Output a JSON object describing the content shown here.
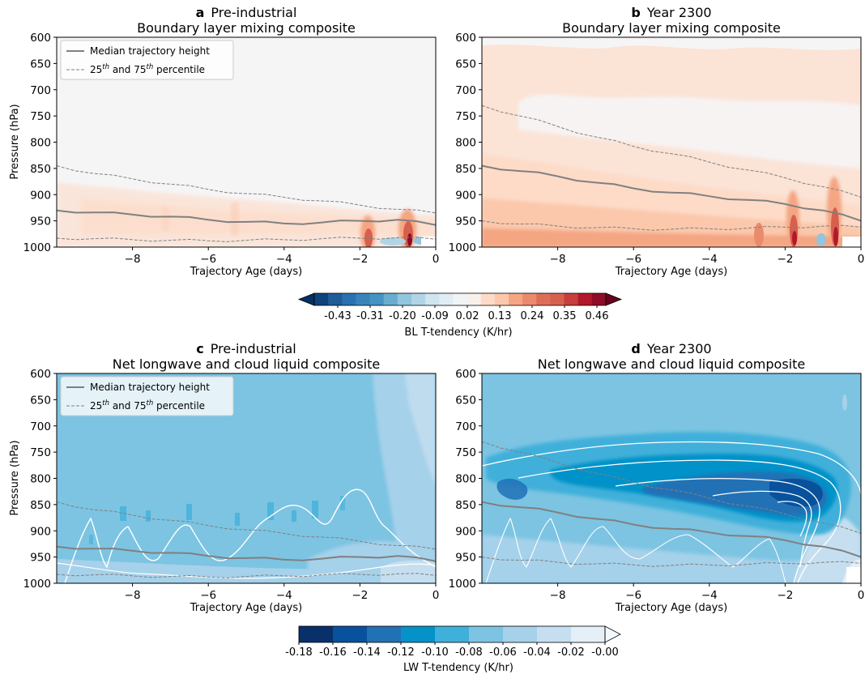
{
  "chart_data": [
    {
      "type": "heatmap",
      "panel_letter": "a",
      "title": "Pre-industrial",
      "subtitle": "Boundary layer mixing composite",
      "xlabel": "Trajectory Age (days)",
      "ylabel": "Pressure (hPa)",
      "xlim": [
        -10,
        0
      ],
      "ylim": [
        600,
        1000
      ],
      "y_inverted": true,
      "xticks": [
        -8,
        -6,
        -4,
        -2,
        0
      ],
      "yticks": [
        600,
        650,
        700,
        750,
        800,
        850,
        900,
        950,
        1000
      ],
      "legend": {
        "position": "top-left",
        "entries": [
          {
            "label": "Median trajectory height",
            "style": "solid"
          },
          {
            "label_base": "25",
            "sup1": "th",
            "label_mid": " and 75",
            "sup2": "th",
            "label_end": " percentile",
            "style": "dashed"
          }
        ]
      },
      "series": [
        {
          "role": "median",
          "x": [
            -10,
            -9,
            -8,
            -7,
            -6,
            -5,
            -4,
            -3,
            -2,
            -1,
            0
          ],
          "y": [
            930,
            934,
            938,
            942,
            948,
            952,
            955,
            953,
            950,
            948,
            958
          ]
        },
        {
          "role": "p25",
          "x": [
            -10,
            -9,
            -8,
            -7,
            -6,
            -5,
            -4,
            -3,
            -2,
            -1,
            0
          ],
          "y": [
            845,
            860,
            870,
            880,
            890,
            898,
            905,
            912,
            920,
            928,
            935
          ]
        },
        {
          "role": "p75",
          "x": [
            -10,
            -9,
            -8,
            -7,
            -6,
            -5,
            -4,
            -3,
            -2,
            -1,
            0
          ],
          "y": [
            983,
            984,
            986,
            987,
            988,
            987,
            986,
            984,
            983,
            982,
            985
          ]
        }
      ],
      "color_field": "bl_warm_low"
    },
    {
      "type": "heatmap",
      "panel_letter": "b",
      "title": "Year 2300",
      "subtitle": "Boundary layer mixing composite",
      "xlabel": "Trajectory Age (days)",
      "ylabel": "",
      "xlim": [
        -10,
        0
      ],
      "ylim": [
        600,
        1000
      ],
      "y_inverted": true,
      "xticks": [
        -8,
        -6,
        -4,
        -2,
        0
      ],
      "yticks": [
        600,
        650,
        700,
        750,
        800,
        850,
        900,
        950,
        1000
      ],
      "series": [
        {
          "role": "median",
          "x": [
            -10,
            -9,
            -8,
            -7,
            -6,
            -5,
            -4,
            -3,
            -2,
            -1,
            0
          ],
          "y": [
            845,
            855,
            865,
            877,
            888,
            896,
            903,
            910,
            918,
            930,
            950
          ]
        },
        {
          "role": "p25",
          "x": [
            -10,
            -9,
            -8,
            -7,
            -6,
            -5,
            -4,
            -3,
            -2,
            -1,
            0
          ],
          "y": [
            730,
            750,
            770,
            790,
            808,
            822,
            838,
            853,
            868,
            885,
            905
          ]
        },
        {
          "role": "p75",
          "x": [
            -10,
            -9,
            -8,
            -7,
            -6,
            -5,
            -4,
            -3,
            -2,
            -1,
            0
          ],
          "y": [
            950,
            956,
            960,
            963,
            965,
            966,
            965,
            964,
            962,
            960,
            962
          ]
        }
      ],
      "color_field": "bl_warm_deep"
    },
    {
      "type": "heatmap",
      "panel_letter": "c",
      "title": "Pre-industrial",
      "subtitle": "Net longwave and cloud liquid composite",
      "xlabel": "Trajectory Age (days)",
      "ylabel": "Pressure (hPa)",
      "xlim": [
        -10,
        0
      ],
      "ylim": [
        600,
        1000
      ],
      "y_inverted": true,
      "xticks": [
        -8,
        -6,
        -4,
        -2,
        0
      ],
      "yticks": [
        600,
        650,
        700,
        750,
        800,
        850,
        900,
        950,
        1000
      ],
      "legend": {
        "position": "top-left",
        "entries": [
          {
            "label": "Median trajectory height",
            "style": "solid"
          },
          {
            "label_base": "25",
            "sup1": "th",
            "label_mid": " and 75",
            "sup2": "th",
            "label_end": " percentile",
            "style": "dashed"
          }
        ]
      },
      "series": [
        {
          "role": "median",
          "x": [
            -10,
            -9,
            -8,
            -7,
            -6,
            -5,
            -4,
            -3,
            -2,
            -1,
            0
          ],
          "y": [
            930,
            934,
            938,
            942,
            948,
            952,
            955,
            953,
            950,
            948,
            958
          ]
        },
        {
          "role": "p25",
          "x": [
            -10,
            -9,
            -8,
            -7,
            -6,
            -5,
            -4,
            -3,
            -2,
            -1,
            0
          ],
          "y": [
            845,
            860,
            870,
            880,
            890,
            898,
            905,
            912,
            920,
            928,
            935
          ]
        },
        {
          "role": "p75",
          "x": [
            -10,
            -9,
            -8,
            -7,
            -6,
            -5,
            -4,
            -3,
            -2,
            -1,
            0
          ],
          "y": [
            983,
            984,
            986,
            987,
            988,
            987,
            986,
            984,
            983,
            982,
            985
          ]
        }
      ],
      "color_field": "lw_weak"
    },
    {
      "type": "heatmap",
      "panel_letter": "d",
      "title": "Year 2300",
      "subtitle": "Net longwave and cloud liquid composite",
      "xlabel": "Trajectory Age (days)",
      "ylabel": "",
      "xlim": [
        -10,
        0
      ],
      "ylim": [
        600,
        1000
      ],
      "y_inverted": true,
      "xticks": [
        -8,
        -6,
        -4,
        -2,
        0
      ],
      "yticks": [
        600,
        650,
        700,
        750,
        800,
        850,
        900,
        950,
        1000
      ],
      "series": [
        {
          "role": "median",
          "x": [
            -10,
            -9,
            -8,
            -7,
            -6,
            -5,
            -4,
            -3,
            -2,
            -1,
            0
          ],
          "y": [
            845,
            855,
            865,
            877,
            888,
            896,
            903,
            910,
            918,
            930,
            950
          ]
        },
        {
          "role": "p25",
          "x": [
            -10,
            -9,
            -8,
            -7,
            -6,
            -5,
            -4,
            -3,
            -2,
            -1,
            0
          ],
          "y": [
            730,
            750,
            770,
            790,
            808,
            822,
            838,
            853,
            868,
            885,
            905
          ]
        },
        {
          "role": "p75",
          "x": [
            -10,
            -9,
            -8,
            -7,
            -6,
            -5,
            -4,
            -3,
            -2,
            -1,
            0
          ],
          "y": [
            950,
            956,
            960,
            963,
            965,
            966,
            965,
            964,
            962,
            960,
            962
          ]
        }
      ],
      "color_field": "lw_strong"
    }
  ],
  "colorbars": [
    {
      "label": "BL T-tendency (K/hr)",
      "tick_labels": [
        "-0.43",
        "-0.31",
        "-0.20",
        "-0.09",
        "0.02",
        "0.13",
        "0.24",
        "0.35",
        "0.46"
      ],
      "colors": [
        "#053061",
        "#0f437b",
        "#1f5c98",
        "#2a71b2",
        "#3784bb",
        "#4393c3",
        "#6aacd0",
        "#92c5de",
        "#b1d5e7",
        "#d1e5f0",
        "#e1edf4",
        "#f0f4f7",
        "#f9f0eb",
        "#fddbc7",
        "#fbc8ac",
        "#f4a582",
        "#ea8a6d",
        "#de6d58",
        "#d6604d",
        "#c53e3d",
        "#b2182b",
        "#8e0c25",
        "#67001f"
      ],
      "extend": "both"
    },
    {
      "label": "LW T-tendency (K/hr)",
      "tick_labels": [
        "-0.18",
        "-0.16",
        "-0.14",
        "-0.12",
        "-0.10",
        "-0.08",
        "-0.06",
        "-0.04",
        "-0.02",
        "-0.00"
      ],
      "colors": [
        "#08306b",
        "#08519c",
        "#2171b5",
        "#0492c8",
        "#3fb0da",
        "#7cc4e2",
        "#a6d1ea",
        "#c6dff0",
        "#e4eff8"
      ],
      "extend": "max"
    }
  ]
}
